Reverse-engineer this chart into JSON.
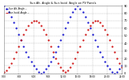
{
  "title": "Sun Alt. Angle & Sun Incid. Angle on PV Panels",
  "background_color": "#ffffff",
  "plot_bg_color": "#ffffff",
  "grid_color": "#aaaaaa",
  "blue_color": "#0000cc",
  "red_color": "#cc0000",
  "ylim": [
    0,
    90
  ],
  "xlim": [
    0,
    24
  ],
  "ytick_labels": [
    "0",
    "10",
    "20",
    "30",
    "40",
    "50",
    "60",
    "70",
    "80",
    "90"
  ],
  "ytick_values": [
    0,
    10,
    20,
    30,
    40,
    50,
    60,
    70,
    80,
    90
  ],
  "xtick_values": [
    0,
    3,
    6,
    9,
    12,
    15,
    18,
    21,
    24
  ],
  "xtick_labels": [
    "0:00",
    "3:00",
    "6:00",
    "9:00",
    "12:00",
    "15:00",
    "18:00",
    "21:00",
    "24:00"
  ],
  "title_color": "#000000",
  "tick_color": "#000000",
  "blue_x": [
    0,
    0.5,
    1,
    1.5,
    2,
    2.5,
    3,
    3.5,
    4,
    4.5,
    5,
    5.5,
    6,
    6.5,
    7,
    7.5,
    8,
    8.5,
    9,
    9.5,
    10,
    10.5,
    11,
    11.5,
    12,
    12.5,
    13,
    13.5,
    14,
    14.5,
    15,
    15.5,
    16,
    16.5,
    17,
    17.5,
    18,
    18.5,
    19,
    19.5,
    20,
    20.5,
    21,
    21.5,
    22,
    22.5,
    23,
    23.5,
    24
  ],
  "blue_y": [
    90,
    86,
    82,
    75,
    68,
    60,
    52,
    44,
    36,
    29,
    22,
    16,
    10,
    6,
    2,
    0,
    2,
    6,
    10,
    16,
    22,
    29,
    36,
    44,
    52,
    60,
    68,
    75,
    82,
    86,
    90,
    86,
    82,
    75,
    68,
    60,
    52,
    44,
    36,
    29,
    22,
    16,
    10,
    6,
    2,
    0,
    2,
    6,
    10
  ],
  "red_x": [
    0,
    0.5,
    1,
    1.5,
    2,
    2.5,
    3,
    3.5,
    4,
    4.5,
    5,
    5.5,
    6,
    6.5,
    7,
    7.5,
    8,
    8.5,
    9,
    9.5,
    10,
    10.5,
    11,
    11.5,
    12,
    12.5,
    13,
    13.5,
    14,
    14.5,
    15,
    15.5,
    16,
    16.5,
    17,
    17.5,
    18,
    18.5,
    19,
    19.5,
    20,
    20.5,
    21,
    21.5,
    22,
    22.5,
    23,
    23.5,
    24
  ],
  "red_y": [
    2,
    4,
    8,
    14,
    20,
    28,
    36,
    44,
    52,
    58,
    64,
    68,
    70,
    70,
    68,
    64,
    58,
    52,
    44,
    36,
    28,
    20,
    14,
    8,
    4,
    2,
    4,
    8,
    14,
    20,
    28,
    36,
    44,
    52,
    58,
    64,
    68,
    70,
    70,
    68,
    64,
    58,
    52,
    44,
    36,
    28,
    20,
    14,
    8
  ],
  "legend_blue": "Sun Alt. Angle --",
  "legend_red": "Sun Incid. Angle --"
}
